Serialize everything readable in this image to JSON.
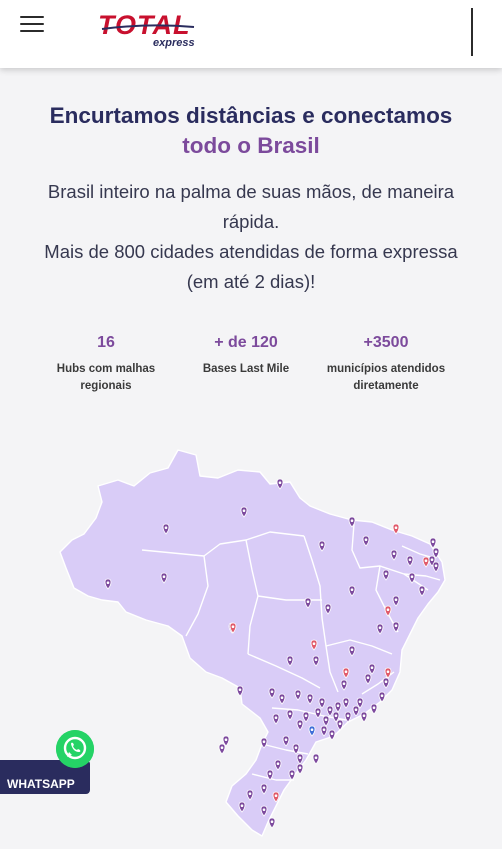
{
  "header": {
    "menu_icon": "hamburger-icon",
    "logo_main": "TOTAL",
    "logo_sub": "express",
    "brand_color": "#c8102e",
    "navy_color": "#2a2c5e"
  },
  "headline": {
    "line1": "Encurtamos distâncias e conectamos",
    "line2": "todo o Brasil",
    "accent_color": "#7c4a9c"
  },
  "subtext": {
    "line1": "Brasil inteiro na palma de suas mãos, de maneira",
    "line2": "rápida.",
    "line3": "Mais de 800 cidades atendidas de forma expressa",
    "line4": "(em até 2 dias)!"
  },
  "stats": [
    {
      "value": "16",
      "label_line1": "Hubs com malhas",
      "label_line2": "regionais"
    },
    {
      "value": "+ de 120",
      "label_line1": "Bases Last Mile",
      "label_line2": ""
    },
    {
      "value": "+3500",
      "label_line1": "municípios atendidos",
      "label_line2": "diretamente"
    }
  ],
  "map": {
    "icon": "brazil-map",
    "fill_color": "#d9ccf7",
    "pin_colors": {
      "purple": "#7d4a9e",
      "red": "#e05a6b",
      "blue": "#3f6ed8"
    }
  },
  "whatsapp": {
    "label": "WHATSAPP",
    "icon": "whatsapp-icon",
    "color": "#25d366"
  }
}
